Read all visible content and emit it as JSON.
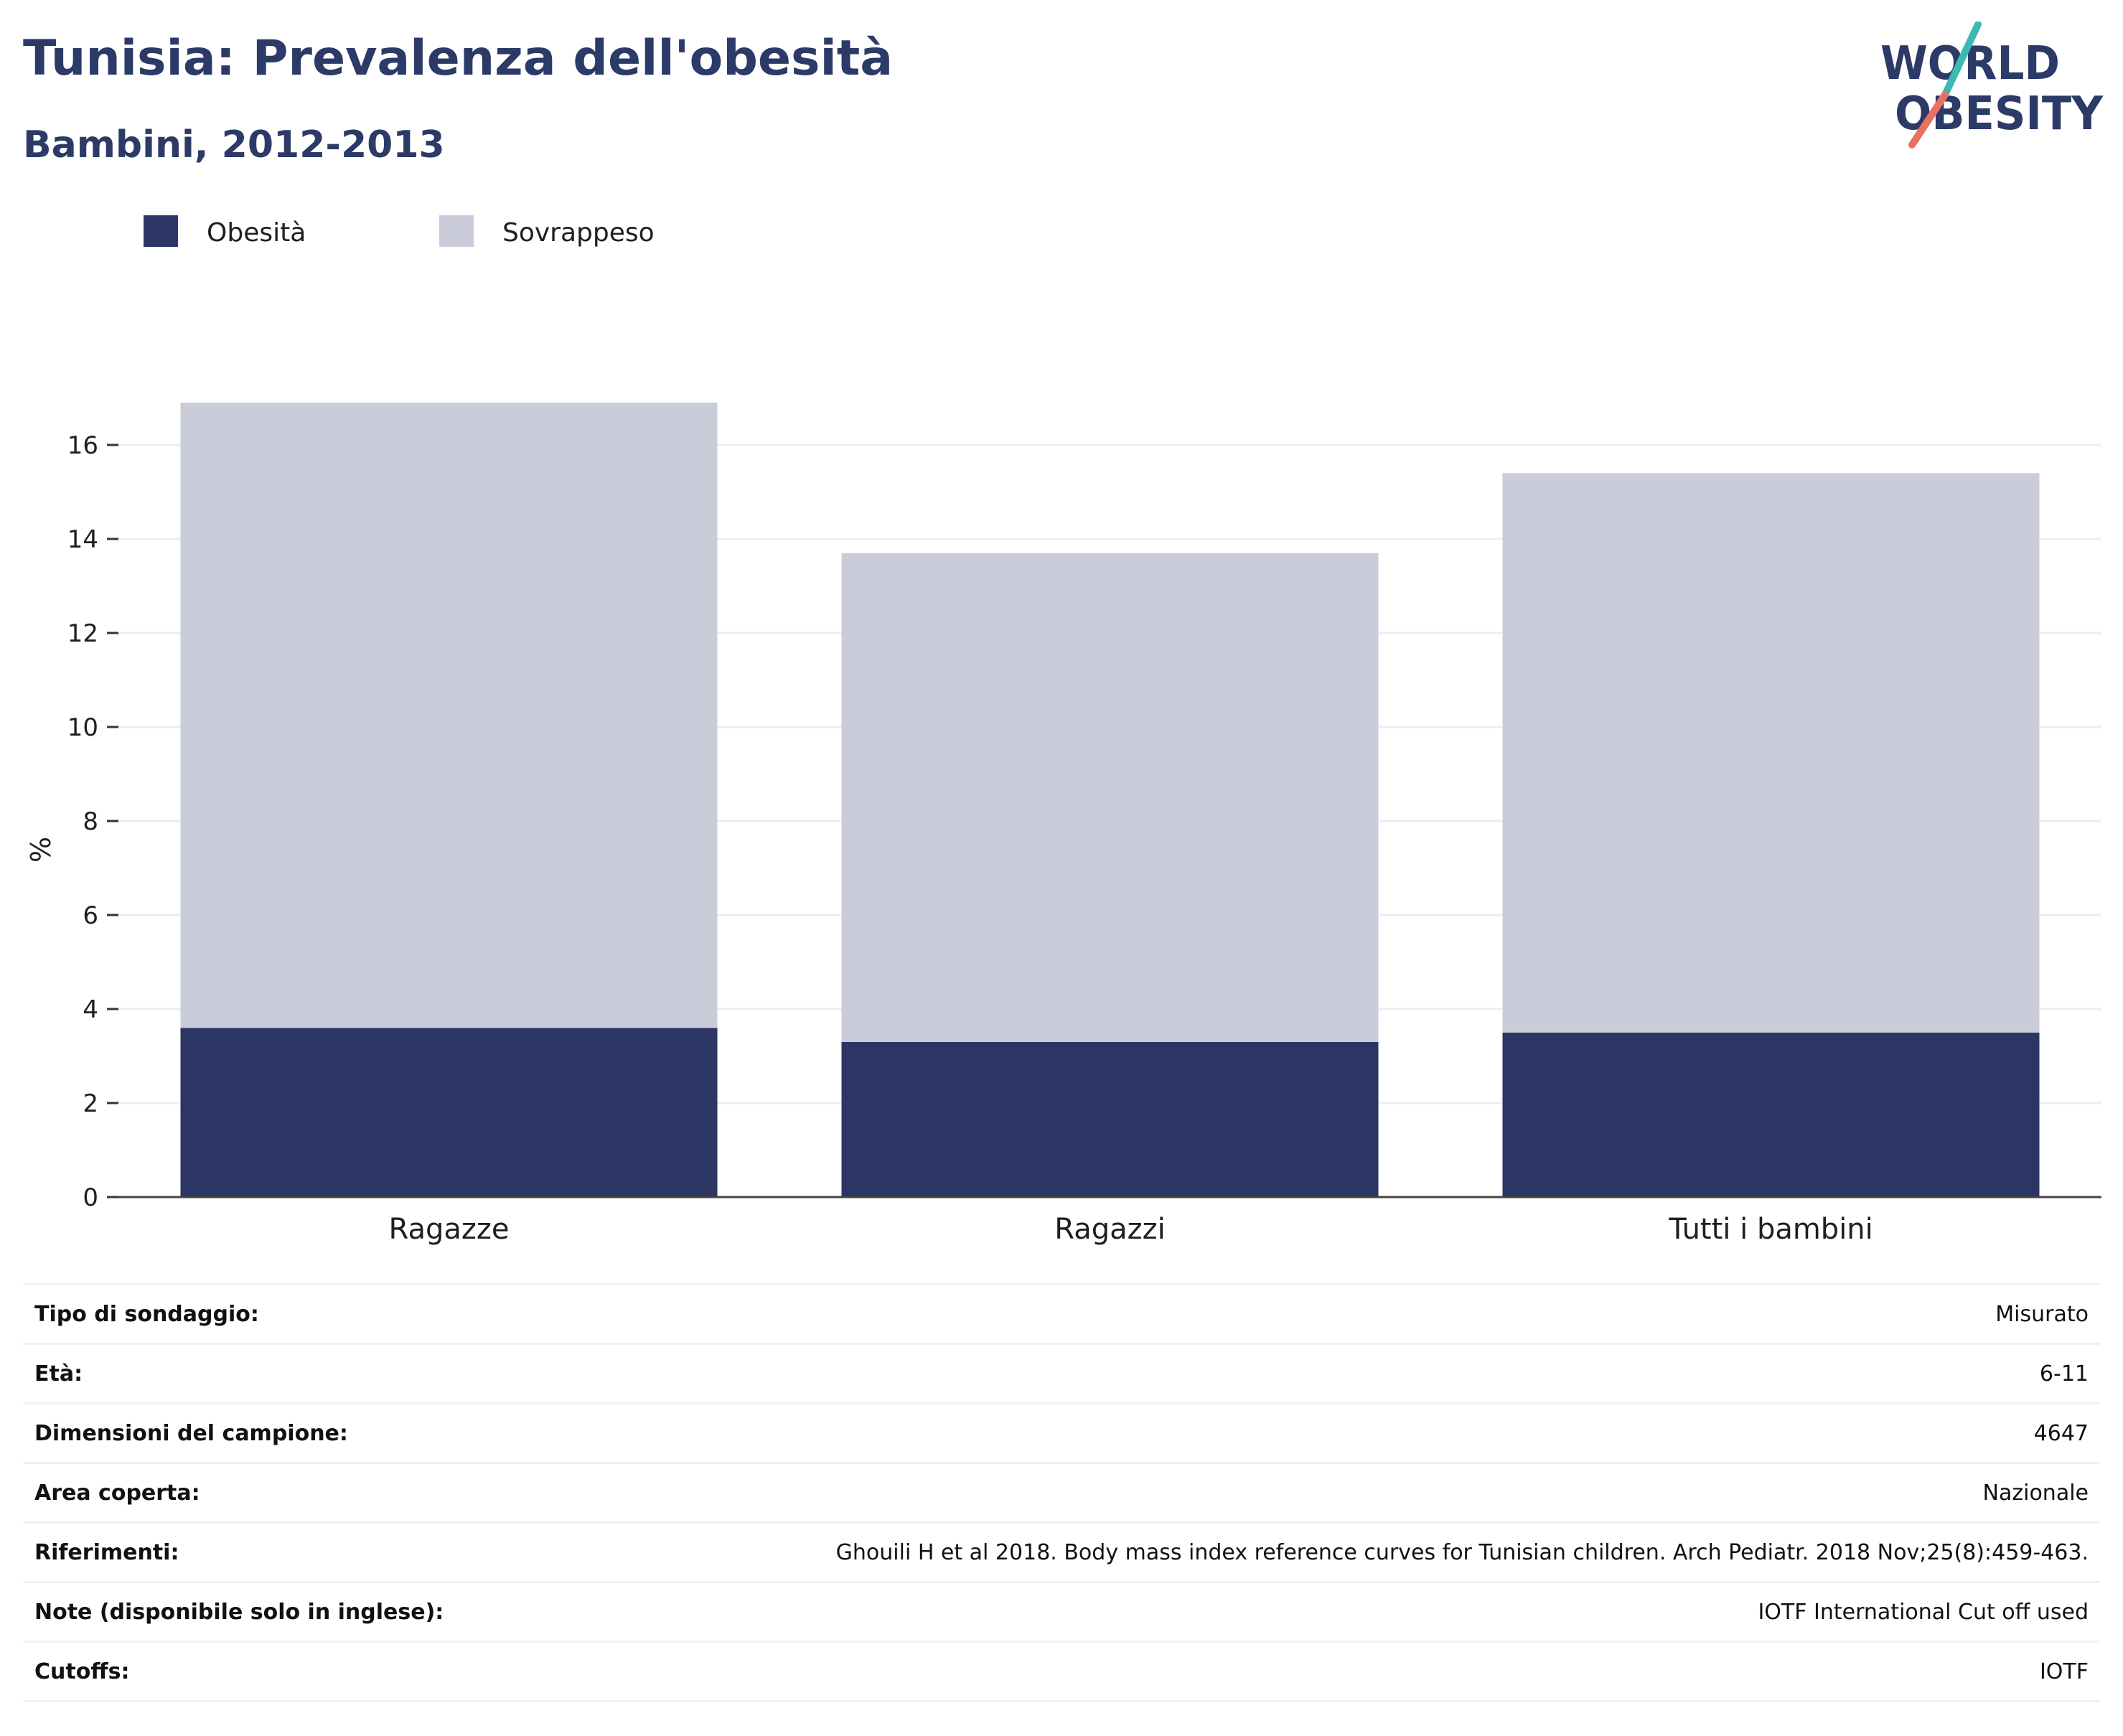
{
  "header": {
    "title": "Tunisia: Prevalenza dell'obesità",
    "subtitle": "Bambini, 2012-2013",
    "logo_line1": "WORLD",
    "logo_line2": "OBESITY"
  },
  "colors": {
    "obesity": "#2b3665",
    "overweight": "#cacdd9",
    "title": "#2b3a67",
    "logo_teal": "#3fb8b4",
    "logo_coral": "#e8715f"
  },
  "chart_data": {
    "type": "bar",
    "stacked": true,
    "categories": [
      "Ragazze",
      "Ragazzi",
      "Tutti i bambini"
    ],
    "series": [
      {
        "name": "Obesità",
        "values": [
          3.6,
          3.3,
          3.5
        ]
      },
      {
        "name": "Sovrappeso",
        "values": [
          13.3,
          10.4,
          11.9
        ]
      }
    ],
    "totals": [
      16.9,
      13.7,
      15.4
    ],
    "xlabel": "",
    "ylabel": "%",
    "ylim": [
      0,
      17
    ],
    "yticks": [
      0,
      2,
      4,
      6,
      8,
      10,
      12,
      14,
      16
    ],
    "grid": true,
    "legend_position": "top-left"
  },
  "info_table": [
    {
      "label": "Tipo di sondaggio:",
      "value": "Misurato"
    },
    {
      "label": "Età:",
      "value": "6-11"
    },
    {
      "label": "Dimensioni del campione:",
      "value": "4647"
    },
    {
      "label": "Area coperta:",
      "value": "Nazionale"
    },
    {
      "label": "Riferimenti:",
      "value": "Ghouili H et al 2018. Body mass index reference curves for Tunisian children. Arch Pediatr. 2018 Nov;25(8):459-463."
    },
    {
      "label": "Note (disponibile solo in inglese):",
      "value": "IOTF International Cut off used"
    },
    {
      "label": "Cutoffs:",
      "value": "IOTF"
    }
  ]
}
